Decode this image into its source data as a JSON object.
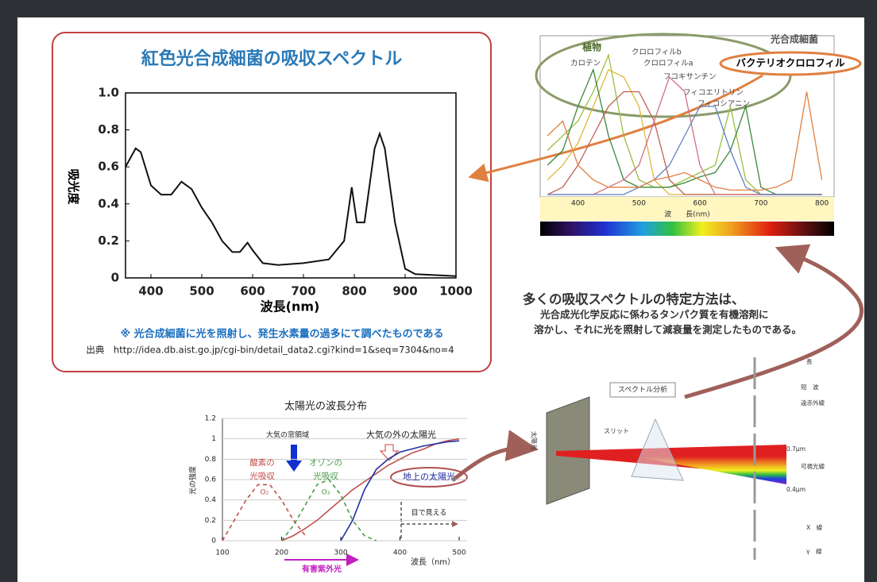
{
  "chart_data": [
    {
      "type": "line",
      "title": "紅色光合成細菌の吸収スペクトル",
      "x_label": "波長(nm)",
      "y_label": "吸光度",
      "x": [
        350,
        370,
        380,
        400,
        420,
        440,
        460,
        480,
        500,
        520,
        540,
        560,
        575,
        590,
        600,
        620,
        650,
        700,
        750,
        780,
        795,
        805,
        820,
        840,
        850,
        860,
        880,
        900,
        920,
        1000
      ],
      "values": [
        0.6,
        0.7,
        0.68,
        0.5,
        0.45,
        0.45,
        0.52,
        0.48,
        0.38,
        0.3,
        0.2,
        0.14,
        0.14,
        0.19,
        0.15,
        0.08,
        0.07,
        0.08,
        0.1,
        0.2,
        0.49,
        0.3,
        0.3,
        0.7,
        0.78,
        0.7,
        0.3,
        0.05,
        0.02,
        0.01
      ],
      "color": "#111111",
      "xlim": [
        350,
        1000
      ],
      "ylim": [
        0,
        1
      ],
      "xticks": [
        400,
        500,
        600,
        700,
        800,
        900,
        1000
      ],
      "yticks": [
        0,
        0.2,
        0.4,
        0.6,
        0.8,
        {
          "value": 1,
          "label": "1.0"
        }
      ]
    },
    {
      "type": "line",
      "x_label": "波　　長(nm)",
      "annotations": [
        "植物",
        "光合成細菌"
      ],
      "x": [
        350,
        375,
        400,
        425,
        450,
        475,
        500,
        525,
        550,
        575,
        600,
        625,
        650,
        675,
        700,
        725,
        750,
        775,
        800
      ],
      "series": [
        {
          "name": "カロテン",
          "color": "#e0b838",
          "values": [
            0.1,
            0.2,
            0.35,
            0.6,
            0.85,
            0.8,
            0.6,
            0.1,
            0,
            0,
            0,
            0,
            0,
            0,
            0,
            0,
            0,
            0,
            0
          ]
        },
        {
          "name": "クロロフィルb",
          "color": "#9ac040",
          "values": [
            0.3,
            0.4,
            0.5,
            0.7,
            0.95,
            0.4,
            0.1,
            0.05,
            0.05,
            0.1,
            0.15,
            0.2,
            0.6,
            0.1,
            0,
            0,
            0,
            0,
            0
          ]
        },
        {
          "name": "クロロフィルa",
          "color": "#3a8a3a",
          "values": [
            0.2,
            0.3,
            0.6,
            0.85,
            0.4,
            0.1,
            0.05,
            0.05,
            0.05,
            0.08,
            0.12,
            0.15,
            0.3,
            0.6,
            0.05,
            0,
            0,
            0,
            0
          ]
        },
        {
          "name": "フコキサンチン",
          "color": "#c06050",
          "values": [
            0,
            0.05,
            0.2,
            0.4,
            0.6,
            0.7,
            0.7,
            0.5,
            0.1,
            0,
            0,
            0,
            0,
            0,
            0,
            0,
            0,
            0,
            0
          ]
        },
        {
          "name": "フィコエリトリン",
          "color": "#d07080",
          "values": [
            0,
            0,
            0,
            0,
            0.05,
            0.1,
            0.2,
            0.5,
            0.8,
            0.7,
            0.2,
            0,
            0,
            0,
            0,
            0,
            0,
            0,
            0
          ]
        },
        {
          "name": "フィコシアニン",
          "color": "#6080c0",
          "values": [
            0,
            0,
            0,
            0,
            0,
            0,
            0.05,
            0.1,
            0.2,
            0.4,
            0.6,
            0.6,
            0.3,
            0.05,
            0,
            0,
            0,
            0,
            0
          ]
        },
        {
          "name": "バクテリオクロロフィル",
          "color": "#e08040",
          "values": [
            0.4,
            0.5,
            0.2,
            0.1,
            0.05,
            0.05,
            0.05,
            0.1,
            0.12,
            0.15,
            0.1,
            0.05,
            0.03,
            0.03,
            0.03,
            0.05,
            0.1,
            0.7,
            0.1
          ]
        }
      ],
      "xlim": [
        338,
        820
      ],
      "ylim": [
        0,
        1
      ],
      "xticks": [
        400,
        500,
        600,
        700,
        800
      ]
    },
    {
      "type": "line",
      "title": "太陽光の波長分布",
      "x_label": "波長（nm）",
      "y_label": "光の強度",
      "annotations": [
        "大気の窓領域",
        [
          "酸素の",
          "光吸収"
        ],
        [
          "オゾンの",
          "光吸収"
        ],
        "目で見える",
        "有害紫外光"
      ],
      "x": [
        100,
        120,
        140,
        160,
        180,
        200,
        220,
        240,
        260,
        280,
        300,
        320,
        340,
        360,
        380,
        400,
        420,
        440,
        460,
        480,
        500
      ],
      "series": [
        {
          "name": "大気の外の太陽光",
          "color": "#c0504d",
          "dashed": false,
          "values": [
            null,
            null,
            null,
            null,
            null,
            0,
            0.05,
            0.12,
            0.2,
            0.3,
            0.4,
            0.5,
            0.58,
            0.66,
            0.74,
            0.8,
            0.86,
            0.9,
            0.95,
            0.98,
            1.0
          ]
        },
        {
          "name": "地上の太陽光",
          "color": "#2030a0",
          "dashed": false,
          "values": [
            null,
            null,
            null,
            null,
            null,
            null,
            null,
            null,
            null,
            null,
            0,
            0.2,
            0.5,
            0.7,
            0.8,
            0.87,
            0.9,
            0.93,
            0.95,
            0.97,
            0.98
          ]
        },
        {
          "name": "O₂",
          "color": "#c0504d",
          "dashed": true,
          "values": [
            0,
            0.2,
            0.4,
            0.55,
            0.55,
            0.4,
            0.2,
            0.05,
            null,
            null,
            null,
            null,
            null,
            null,
            null,
            null,
            null,
            null,
            null,
            null,
            null
          ]
        },
        {
          "name": "O₃",
          "color": "#4a9a4a",
          "dashed": true,
          "values": [
            null,
            null,
            null,
            null,
            null,
            0,
            0.15,
            0.35,
            0.55,
            0.6,
            0.45,
            0.2,
            0.05,
            0,
            null,
            null,
            null,
            null,
            null,
            null,
            null
          ]
        }
      ],
      "xlim": [
        100,
        500
      ],
      "ylim": [
        0,
        1.2
      ],
      "grid": true,
      "xticks": [
        100,
        200,
        300,
        400,
        500
      ],
      "yticks": [
        0,
        0.2,
        0.4,
        0.6,
        0.8,
        1,
        1.2
      ]
    }
  ],
  "texts": {
    "note": "※ 光合成細菌に光を照射し、発生水素量の過多にて調べたものである",
    "source": "出典　http://idea.db.aist.go.jp/cgi-bin/detail_data2.cgi?kind=1&seq=7304&no=4",
    "method_title": "多くの吸収スペクトルの特定方法は、",
    "method_lines": [
      "光合成光化学反応に係わるタンパク質を有機溶剤に",
      "溶かし、それに光を照射して減衰量を測定したものである。"
    ]
  },
  "diagram": {
    "title": "スペクトル分析",
    "slit": "スリット",
    "sunlight": "太陽光",
    "labels": [
      "長",
      "短　波",
      "遠赤外線",
      "0.7μm",
      "可視光線",
      "0.4μm",
      "X　線",
      "γ　線"
    ]
  }
}
